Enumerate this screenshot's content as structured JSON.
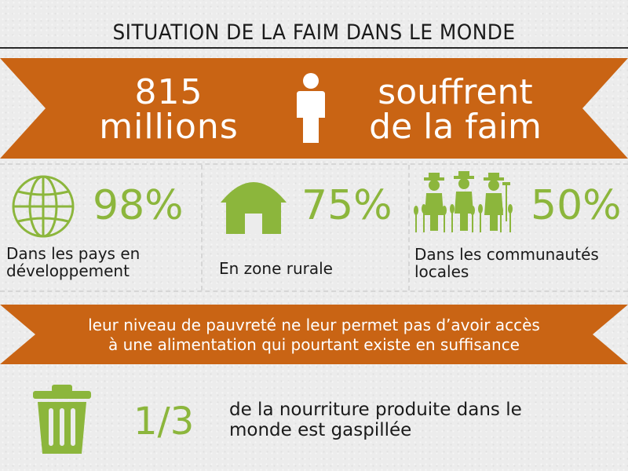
{
  "title": "SITUATION DE LA FAIM DANS LE MONDE",
  "colors": {
    "ribbon_orange": "#c96414",
    "accent_green": "#8cb63c",
    "background": "#ececec"
  },
  "headline": {
    "number_line1": "815",
    "number_line2": "millions",
    "text_line1": "souffrent",
    "text_line2": "de la faim",
    "icon": "person-icon"
  },
  "stats": [
    {
      "icon": "globe-icon",
      "value": "98%",
      "label_line1": "Dans les pays en",
      "label_line2": "développement"
    },
    {
      "icon": "barn-icon",
      "value": "75%",
      "label_line1": "En zone rurale",
      "label_line2": ""
    },
    {
      "icon": "farmers-icon",
      "value": "50%",
      "label_line1": "Dans les communautés",
      "label_line2": "locales"
    }
  ],
  "poverty": {
    "line1": "leur niveau de pauvreté ne leur permet pas d’avoir accès",
    "line2": "à une alimentation qui pourtant existe en suffisance"
  },
  "waste": {
    "icon": "trash-can-icon",
    "fraction": "1/3",
    "line1": "de la nourriture produite dans le",
    "line2": "monde est gaspillée"
  }
}
